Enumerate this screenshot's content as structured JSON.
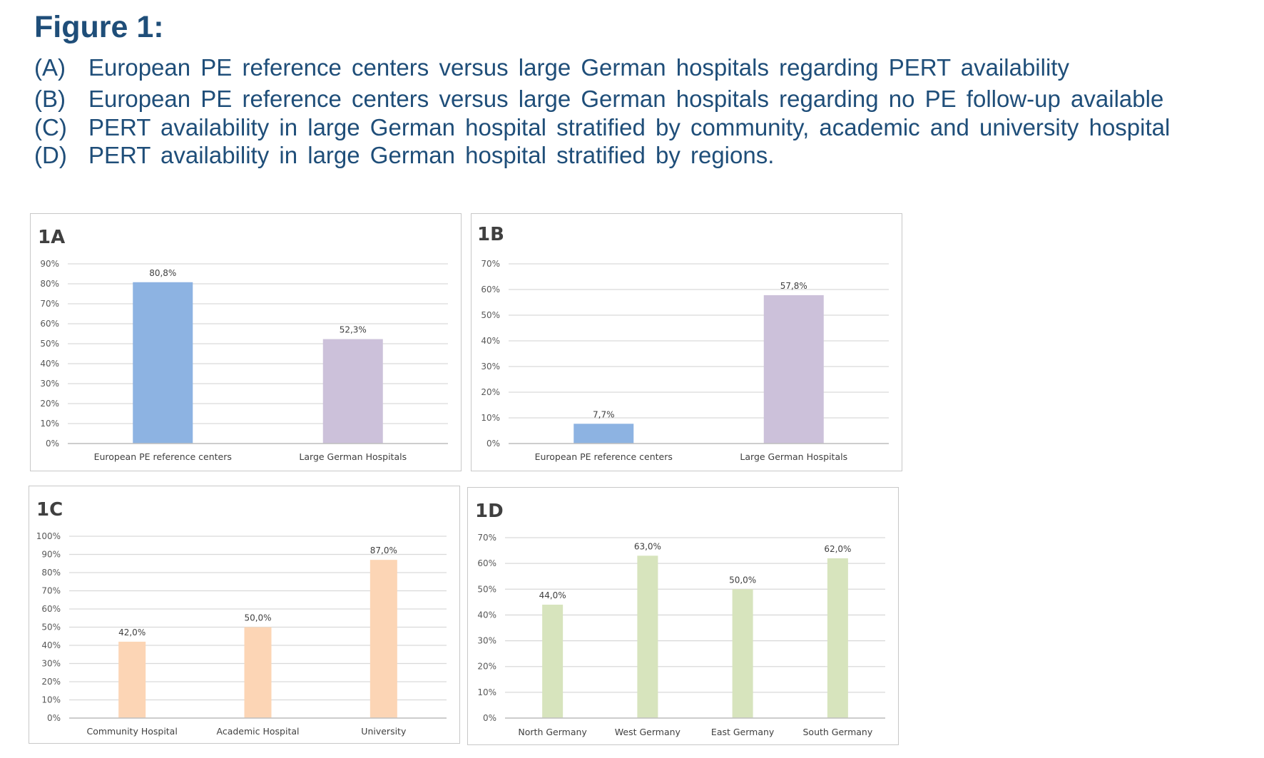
{
  "figure_title": "Figure 1:",
  "captions": [
    {
      "letter": "(A)",
      "text": "European PE reference centers versus large German hospitals regarding PERT availability"
    },
    {
      "letter": "(B)",
      "text": "European PE reference centers versus large German hospitals regarding no PE follow-up available"
    },
    {
      "letter": "(C)",
      "text": "PERT availability in large German hospital stratified by community, academic and university hospital"
    },
    {
      "letter": "(D)",
      "text": "PERT availability in large German hospital stratified by regions."
    }
  ],
  "chart_data": [
    {
      "id": "1A",
      "type": "bar",
      "title": "1A",
      "categories": [
        "European PE reference centers",
        "Large German Hospitals"
      ],
      "values": [
        80.8,
        52.3
      ],
      "value_labels": [
        "80,8%",
        "52,3%"
      ],
      "colors": [
        "#8db3e2",
        "#ccc1da"
      ],
      "ylim": [
        0,
        90
      ],
      "yticks": [
        "0%",
        "10%",
        "20%",
        "30%",
        "40%",
        "50%",
        "60%",
        "70%",
        "80%",
        "90%"
      ],
      "grid": true,
      "legend": "none"
    },
    {
      "id": "1B",
      "type": "bar",
      "title": "1B",
      "categories": [
        "European PE reference centers",
        "Large German Hospitals"
      ],
      "values": [
        7.7,
        57.8
      ],
      "value_labels": [
        "7,7%",
        "57,8%"
      ],
      "colors": [
        "#8db3e2",
        "#ccc1da"
      ],
      "ylim": [
        0,
        70
      ],
      "yticks": [
        "0%",
        "10%",
        "20%",
        "30%",
        "40%",
        "50%",
        "60%",
        "70%"
      ],
      "grid": true,
      "legend": "none"
    },
    {
      "id": "1C",
      "type": "bar",
      "title": "1C",
      "categories": [
        "Community Hospital",
        "Academic Hospital",
        "University"
      ],
      "values": [
        42.0,
        50.0,
        87.0
      ],
      "value_labels": [
        "42,0%",
        "50,0%",
        "87,0%"
      ],
      "colors": [
        "#fcd5b5",
        "#fcd5b5",
        "#fcd5b5"
      ],
      "ylim": [
        0,
        100
      ],
      "yticks": [
        "0%",
        "10%",
        "20%",
        "30%",
        "40%",
        "50%",
        "60%",
        "70%",
        "80%",
        "90%",
        "100%"
      ],
      "grid": true,
      "legend": "none"
    },
    {
      "id": "1D",
      "type": "bar",
      "title": "1D",
      "categories": [
        "North Germany",
        "West Germany",
        "East Germany",
        "South Germany"
      ],
      "values": [
        44.0,
        63.0,
        50.0,
        62.0
      ],
      "value_labels": [
        "44,0%",
        "63,0%",
        "50,0%",
        "62,0%"
      ],
      "colors": [
        "#d7e4bd",
        "#d7e4bd",
        "#d7e4bd",
        "#d7e4bd"
      ],
      "ylim": [
        0,
        70
      ],
      "yticks": [
        "0%",
        "10%",
        "20%",
        "30%",
        "40%",
        "50%",
        "60%",
        "70%"
      ],
      "grid": true,
      "legend": "none"
    }
  ]
}
